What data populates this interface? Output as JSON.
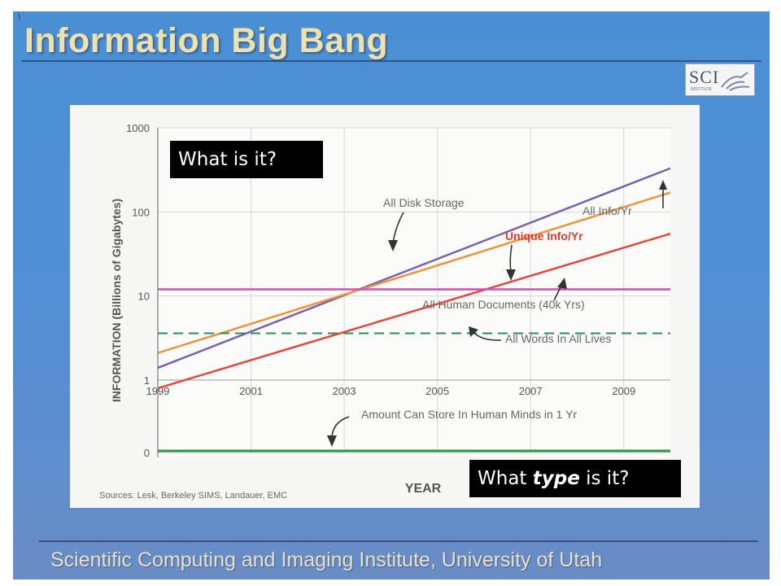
{
  "slide": {
    "title": "Information Big Bang",
    "logo_text": "SCI",
    "logo_subtext": "INSTITUTE",
    "footer": "Scientific Computing and Imaging Institute, University of Utah",
    "corner_mark": "\\"
  },
  "callouts": {
    "what": "What is it?",
    "type_pre": "What ",
    "type_em": "type",
    "type_post": " is it?"
  },
  "chart_data": {
    "type": "line",
    "title": "",
    "xlabel": "YEAR",
    "ylabel": "INFORMATION (Billions of Gigabytes)",
    "yscale": "log",
    "ylim": [
      1,
      1000
    ],
    "xlim": [
      1999,
      2010
    ],
    "x_ticks": [
      "1999",
      "2001",
      "2003",
      "2005",
      "2007",
      "2009"
    ],
    "y_ticks": [
      "1000",
      "100",
      "10",
      "1"
    ],
    "y_extra_tick": "0",
    "grid": true,
    "sources": "Sources: Lesk, Berkeley SIMS, Landauer, EMC",
    "series": [
      {
        "name": "All Disk Storage",
        "color": "#7a5fb4",
        "dash": false,
        "x": [
          1999,
          2010
        ],
        "y": [
          1.4,
          330
        ]
      },
      {
        "name": "All Info/Yr",
        "color": "#f0923a",
        "dash": false,
        "x": [
          1999,
          2010
        ],
        "y": [
          2.1,
          170
        ]
      },
      {
        "name": "Unique Info/Yr",
        "color": "#e8463a",
        "dash": false,
        "x": [
          1999,
          2010
        ],
        "y": [
          0.8,
          55
        ],
        "label_color": "#e03a2c"
      },
      {
        "name": "All Human Documents (40k Yrs)",
        "color": "#d24fb4",
        "dash": false,
        "x": [
          1999,
          2010
        ],
        "y": [
          12,
          12
        ]
      },
      {
        "name": "All Words In All Lives",
        "color": "#2e8a5a",
        "dash": true,
        "x": [
          1999,
          2010
        ],
        "y": [
          3.6,
          3.6
        ]
      }
    ],
    "baseline_series": {
      "name": "Amount Can Store In Human Minds in 1 Yr",
      "color": "#2a9a3a",
      "x": [
        1999,
        2010
      ]
    }
  }
}
